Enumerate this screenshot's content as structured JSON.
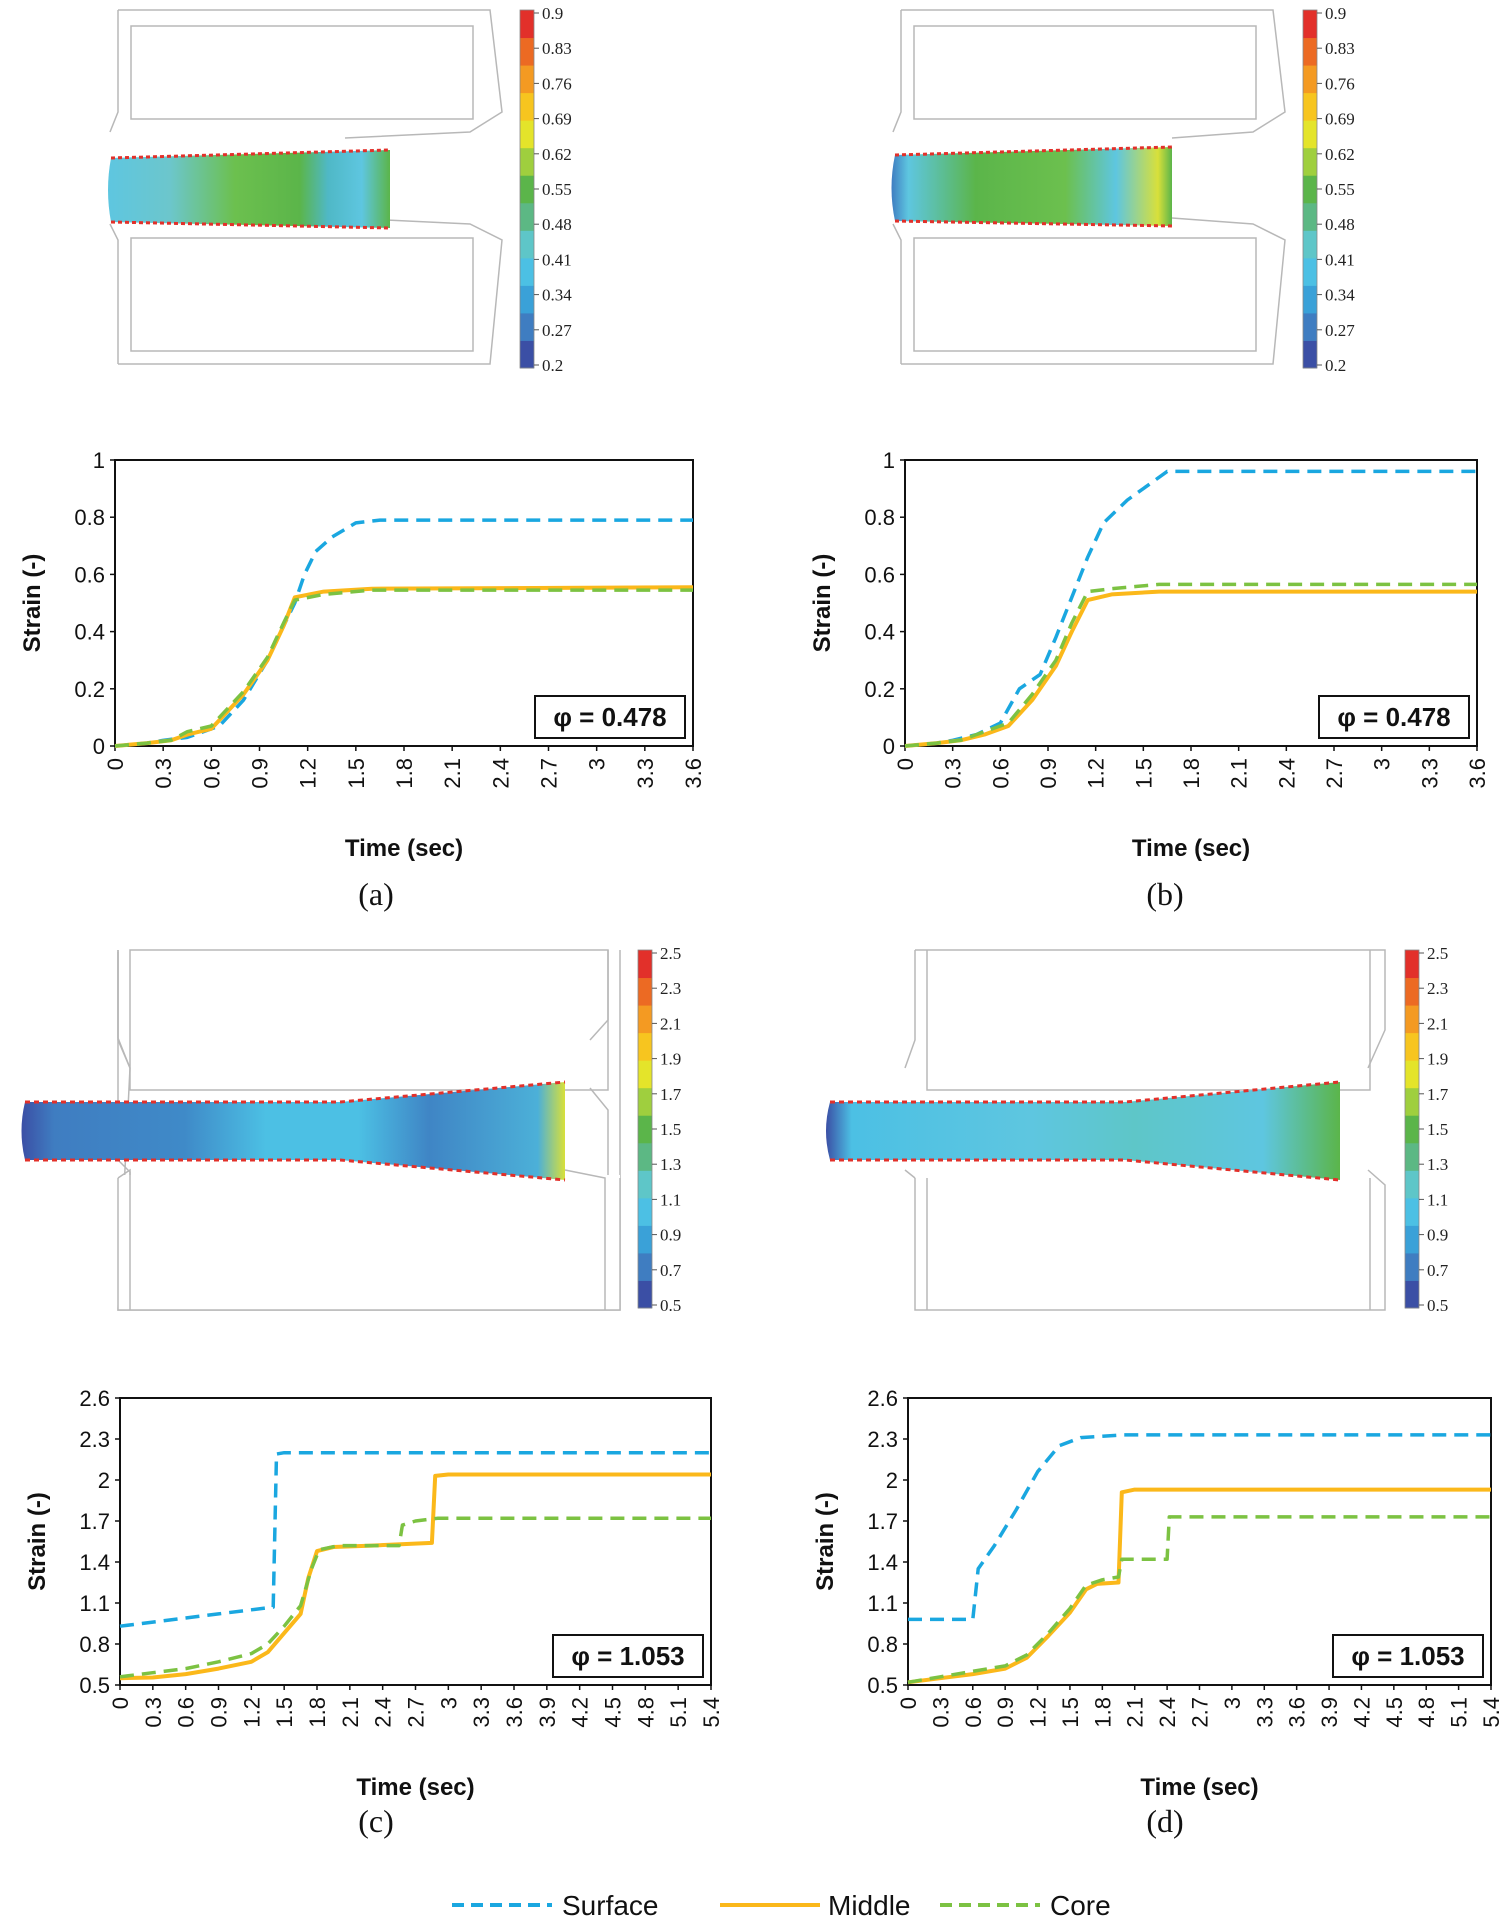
{
  "legend": {
    "items": [
      {
        "name": "Surface",
        "color": "#1aa7e0",
        "dash": "dashed"
      },
      {
        "name": "Middle",
        "color": "#fbb81a",
        "dash": "solid"
      },
      {
        "name": "Core",
        "color": "#7cc242",
        "dash": "dashed"
      }
    ]
  },
  "colormap": [
    "#3b4fa5",
    "#3f7dc1",
    "#3aa1d8",
    "#4cc0e4",
    "#5ec6c8",
    "#5cb884",
    "#5bb54a",
    "#9fcf3e",
    "#e4e42a",
    "#f7c51f",
    "#f49a22",
    "#ec6a23",
    "#e2302a"
  ],
  "contours": [
    {
      "panel": "a",
      "colorbar_ticks": [
        "0.9",
        "0.83",
        "0.76",
        "0.69",
        "0.62",
        "0.55",
        "0.48",
        "0.41",
        "0.34",
        "0.27",
        "0.2"
      ]
    },
    {
      "panel": "b",
      "colorbar_ticks": [
        "0.9",
        "0.83",
        "0.76",
        "0.69",
        "0.62",
        "0.55",
        "0.48",
        "0.41",
        "0.34",
        "0.27",
        "0.2"
      ]
    },
    {
      "panel": "c",
      "colorbar_ticks": [
        "2.5",
        "2.3",
        "2.1",
        "1.9",
        "1.7",
        "1.5",
        "1.3",
        "1.1",
        "0.9",
        "0.7",
        "0.5"
      ]
    },
    {
      "panel": "d",
      "colorbar_ticks": [
        "2.5",
        "2.3",
        "2.1",
        "1.9",
        "1.7",
        "1.5",
        "1.3",
        "1.1",
        "0.9",
        "0.7",
        "0.5"
      ]
    }
  ],
  "chart_data": [
    {
      "type": "line",
      "caption": "(a)",
      "annotation": "φ = 0.478",
      "xlabel": "Time (sec)",
      "ylabel": "Strain (-)",
      "xlim": [
        0,
        3.6
      ],
      "ylim": [
        0,
        1
      ],
      "xticks": [
        "0",
        "0.3",
        "0.6",
        "0.9",
        "1.2",
        "1.5",
        "1.8",
        "2.1",
        "2.4",
        "2.7",
        "3",
        "3.3",
        "3.6"
      ],
      "yticks": [
        "0",
        "0.2",
        "0.4",
        "0.6",
        "0.8",
        "1"
      ],
      "series": [
        {
          "name": "Surface",
          "points": [
            [
              0,
              0
            ],
            [
              0.2,
              0.01
            ],
            [
              0.3,
              0.02
            ],
            [
              0.45,
              0.03
            ],
            [
              0.55,
              0.05
            ],
            [
              0.65,
              0.07
            ],
            [
              0.8,
              0.16
            ],
            [
              0.95,
              0.3
            ],
            [
              1.05,
              0.42
            ],
            [
              1.12,
              0.5
            ],
            [
              1.18,
              0.6
            ],
            [
              1.25,
              0.68
            ],
            [
              1.35,
              0.73
            ],
            [
              1.5,
              0.78
            ],
            [
              1.65,
              0.79
            ],
            [
              3.6,
              0.79
            ]
          ]
        },
        {
          "name": "Middle",
          "points": [
            [
              0,
              0
            ],
            [
              0.2,
              0.01
            ],
            [
              0.35,
              0.02
            ],
            [
              0.45,
              0.04
            ],
            [
              0.6,
              0.06
            ],
            [
              0.8,
              0.18
            ],
            [
              0.95,
              0.3
            ],
            [
              1.05,
              0.42
            ],
            [
              1.12,
              0.52
            ],
            [
              1.3,
              0.54
            ],
            [
              1.6,
              0.55
            ],
            [
              3.6,
              0.555
            ]
          ]
        },
        {
          "name": "Core",
          "points": [
            [
              0,
              0
            ],
            [
              0.2,
              0.01
            ],
            [
              0.35,
              0.02
            ],
            [
              0.45,
              0.05
            ],
            [
              0.6,
              0.07
            ],
            [
              0.8,
              0.19
            ],
            [
              0.95,
              0.31
            ],
            [
              1.05,
              0.43
            ],
            [
              1.12,
              0.51
            ],
            [
              1.3,
              0.53
            ],
            [
              1.6,
              0.545
            ],
            [
              3.6,
              0.545
            ]
          ]
        }
      ]
    },
    {
      "type": "line",
      "caption": "(b)",
      "annotation": "φ = 0.478",
      "xlabel": "Time (sec)",
      "ylabel": "Strain (-)",
      "xlim": [
        0,
        3.6
      ],
      "ylim": [
        0,
        1
      ],
      "xticks": [
        "0",
        "0.3",
        "0.6",
        "0.9",
        "1.2",
        "1.5",
        "1.8",
        "2.1",
        "2.4",
        "2.7",
        "3",
        "3.3",
        "3.6"
      ],
      "yticks": [
        "0",
        "0.2",
        "0.4",
        "0.6",
        "0.8",
        "1"
      ],
      "series": [
        {
          "name": "Surface",
          "points": [
            [
              0,
              0
            ],
            [
              0.2,
              0.01
            ],
            [
              0.3,
              0.02
            ],
            [
              0.45,
              0.04
            ],
            [
              0.6,
              0.08
            ],
            [
              0.72,
              0.2
            ],
            [
              0.85,
              0.25
            ],
            [
              0.95,
              0.38
            ],
            [
              1.05,
              0.52
            ],
            [
              1.15,
              0.66
            ],
            [
              1.25,
              0.78
            ],
            [
              1.4,
              0.86
            ],
            [
              1.55,
              0.92
            ],
            [
              1.65,
              0.96
            ],
            [
              3.6,
              0.96
            ]
          ]
        },
        {
          "name": "Middle",
          "points": [
            [
              0,
              0
            ],
            [
              0.2,
              0.01
            ],
            [
              0.35,
              0.02
            ],
            [
              0.5,
              0.04
            ],
            [
              0.65,
              0.07
            ],
            [
              0.8,
              0.16
            ],
            [
              0.95,
              0.28
            ],
            [
              1.05,
              0.4
            ],
            [
              1.15,
              0.51
            ],
            [
              1.3,
              0.53
            ],
            [
              1.6,
              0.54
            ],
            [
              3.6,
              0.54
            ]
          ]
        },
        {
          "name": "Core",
          "points": [
            [
              0,
              0
            ],
            [
              0.2,
              0.01
            ],
            [
              0.35,
              0.02
            ],
            [
              0.5,
              0.05
            ],
            [
              0.65,
              0.08
            ],
            [
              0.8,
              0.18
            ],
            [
              0.95,
              0.3
            ],
            [
              1.05,
              0.43
            ],
            [
              1.15,
              0.54
            ],
            [
              1.3,
              0.55
            ],
            [
              1.6,
              0.565
            ],
            [
              3.6,
              0.565
            ]
          ]
        }
      ]
    },
    {
      "type": "line",
      "caption": "(c)",
      "annotation": "φ = 1.053",
      "xlabel": "Time (sec)",
      "ylabel": "Strain (-)",
      "xlim": [
        0,
        5.4
      ],
      "ylim": [
        0.5,
        2.6
      ],
      "xticks": [
        "0",
        "0.3",
        "0.6",
        "0.9",
        "1.2",
        "1.5",
        "1.8",
        "2.1",
        "2.4",
        "2.7",
        "3",
        "3.3",
        "3.6",
        "3.9",
        "4.2",
        "4.5",
        "4.8",
        "5.1",
        "5.4"
      ],
      "yticks": [
        "0.5",
        "0.8",
        "1.1",
        "1.4",
        "1.7",
        "2",
        "2.3",
        "2.6"
      ],
      "series": [
        {
          "name": "Surface",
          "points": [
            [
              0,
              0.93
            ],
            [
              0.3,
              0.96
            ],
            [
              0.6,
              0.99
            ],
            [
              0.9,
              1.02
            ],
            [
              1.2,
              1.05
            ],
            [
              1.4,
              1.07
            ],
            [
              1.43,
              2.19
            ],
            [
              1.5,
              2.2
            ],
            [
              5.4,
              2.2
            ]
          ]
        },
        {
          "name": "Middle",
          "points": [
            [
              0,
              0.55
            ],
            [
              0.3,
              0.555
            ],
            [
              0.6,
              0.58
            ],
            [
              0.9,
              0.62
            ],
            [
              1.2,
              0.67
            ],
            [
              1.35,
              0.74
            ],
            [
              1.5,
              0.88
            ],
            [
              1.65,
              1.02
            ],
            [
              1.72,
              1.28
            ],
            [
              1.8,
              1.48
            ],
            [
              1.95,
              1.51
            ],
            [
              2.3,
              1.52
            ],
            [
              2.85,
              1.54
            ],
            [
              2.88,
              2.03
            ],
            [
              3.0,
              2.04
            ],
            [
              5.4,
              2.04
            ]
          ]
        },
        {
          "name": "Core",
          "points": [
            [
              0,
              0.56
            ],
            [
              0.3,
              0.59
            ],
            [
              0.6,
              0.62
            ],
            [
              0.9,
              0.67
            ],
            [
              1.2,
              0.73
            ],
            [
              1.35,
              0.8
            ],
            [
              1.5,
              0.93
            ],
            [
              1.65,
              1.08
            ],
            [
              1.75,
              1.35
            ],
            [
              1.82,
              1.49
            ],
            [
              2.0,
              1.52
            ],
            [
              2.55,
              1.52
            ],
            [
              2.58,
              1.67
            ],
            [
              2.7,
              1.7
            ],
            [
              2.9,
              1.72
            ],
            [
              5.4,
              1.72
            ]
          ]
        }
      ]
    },
    {
      "type": "line",
      "caption": "(d)",
      "annotation": "φ = 1.053",
      "xlabel": "Time (sec)",
      "ylabel": "Strain (-)",
      "xlim": [
        0,
        5.4
      ],
      "ylim": [
        0.5,
        2.6
      ],
      "xticks": [
        "0",
        "0.3",
        "0.6",
        "0.9",
        "1.2",
        "1.5",
        "1.8",
        "2.1",
        "2.4",
        "2.7",
        "3",
        "3.3",
        "3.6",
        "3.9",
        "4.2",
        "4.5",
        "4.8",
        "5.1",
        "5.4"
      ],
      "yticks": [
        "0.5",
        "0.8",
        "1.1",
        "1.4",
        "1.7",
        "2",
        "2.3",
        "2.6"
      ],
      "series": [
        {
          "name": "Surface",
          "points": [
            [
              0,
              0.98
            ],
            [
              0.6,
              0.98
            ],
            [
              0.65,
              1.35
            ],
            [
              0.8,
              1.52
            ],
            [
              1.0,
              1.78
            ],
            [
              1.2,
              2.06
            ],
            [
              1.4,
              2.25
            ],
            [
              1.6,
              2.31
            ],
            [
              2.0,
              2.33
            ],
            [
              5.4,
              2.33
            ]
          ]
        },
        {
          "name": "Middle",
          "points": [
            [
              0,
              0.52
            ],
            [
              0.3,
              0.55
            ],
            [
              0.6,
              0.58
            ],
            [
              0.9,
              0.62
            ],
            [
              1.1,
              0.7
            ],
            [
              1.3,
              0.86
            ],
            [
              1.5,
              1.03
            ],
            [
              1.65,
              1.2
            ],
            [
              1.75,
              1.24
            ],
            [
              1.95,
              1.25
            ],
            [
              1.98,
              1.91
            ],
            [
              2.1,
              1.93
            ],
            [
              5.4,
              1.93
            ]
          ]
        },
        {
          "name": "Core",
          "points": [
            [
              0,
              0.52
            ],
            [
              0.3,
              0.56
            ],
            [
              0.6,
              0.6
            ],
            [
              0.9,
              0.64
            ],
            [
              1.1,
              0.72
            ],
            [
              1.3,
              0.88
            ],
            [
              1.5,
              1.06
            ],
            [
              1.65,
              1.23
            ],
            [
              1.8,
              1.27
            ],
            [
              1.95,
              1.29
            ],
            [
              1.98,
              1.42
            ],
            [
              2.4,
              1.42
            ],
            [
              2.42,
              1.73
            ],
            [
              2.6,
              1.73
            ],
            [
              5.4,
              1.73
            ]
          ]
        }
      ]
    }
  ]
}
